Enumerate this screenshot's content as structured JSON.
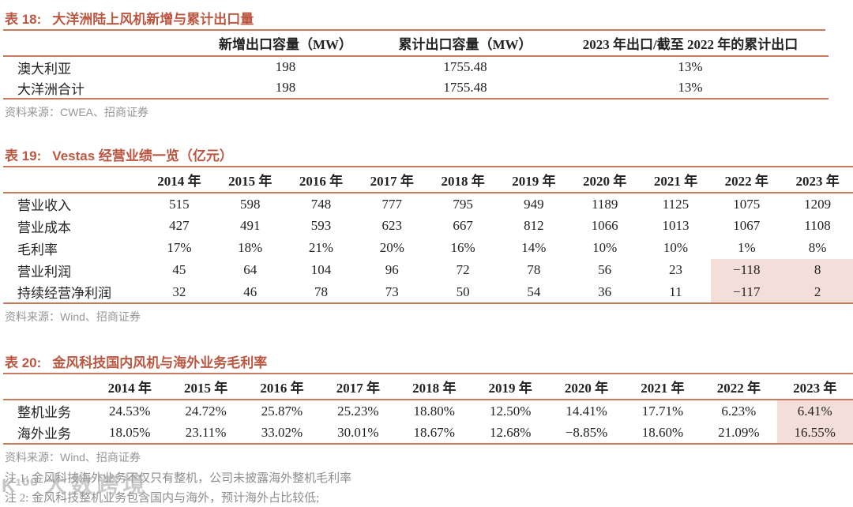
{
  "colors": {
    "title": "#bb5741",
    "rule": "#c67a5d",
    "highlight": "#f3ded9",
    "source_gray": "#969696"
  },
  "table18": {
    "title_num": "表 18:",
    "title": "大洋洲陆上风机新增与累计出口量",
    "columns": [
      "",
      "新增出口容量（MW）",
      "累计出口容量（MW）",
      "2023 年出口/截至 2022 年的累计出口"
    ],
    "rows": [
      {
        "label": "澳大利亚",
        "values": [
          "198",
          "1755.48",
          "13%"
        ]
      },
      {
        "label": "大洋洲合计",
        "values": [
          "198",
          "1755.48",
          "13%"
        ]
      }
    ],
    "source": "资料来源：CWEA、招商证券"
  },
  "table19": {
    "title_num": "表 19:",
    "title": "Vestas 经营业绩一览（亿元）",
    "years": [
      "2014 年",
      "2015 年",
      "2016 年",
      "2017 年",
      "2018 年",
      "2019 年",
      "2020 年",
      "2021 年",
      "2022 年",
      "2023 年"
    ],
    "rows": [
      {
        "label": "营业收入",
        "values": [
          "515",
          "598",
          "748",
          "777",
          "795",
          "949",
          "1189",
          "1125",
          "1075",
          "1209"
        ]
      },
      {
        "label": "营业成本",
        "values": [
          "427",
          "491",
          "593",
          "623",
          "667",
          "812",
          "1066",
          "1013",
          "1067",
          "1108"
        ]
      },
      {
        "label": "毛利率",
        "values": [
          "17%",
          "18%",
          "21%",
          "20%",
          "16%",
          "14%",
          "10%",
          "10%",
          "1%",
          "8%"
        ]
      },
      {
        "label": "营业利润",
        "values": [
          "45",
          "64",
          "104",
          "96",
          "72",
          "78",
          "56",
          "23",
          "−118",
          "8"
        ],
        "highlight_from": 8
      },
      {
        "label": "持续经营净利润",
        "values": [
          "32",
          "46",
          "78",
          "73",
          "50",
          "54",
          "36",
          "11",
          "−117",
          "2"
        ],
        "highlight_from": 8
      }
    ],
    "source": "资料来源：Wind、招商证券"
  },
  "table20": {
    "title_num": "表 20:",
    "title": "金风科技国内风机与海外业务毛利率",
    "years": [
      "2014 年",
      "2015 年",
      "2016 年",
      "2017 年",
      "2018 年",
      "2019 年",
      "2020 年",
      "2021 年",
      "2022 年",
      "2023 年"
    ],
    "rows": [
      {
        "label": "整机业务",
        "values": [
          "24.53%",
          "24.72%",
          "25.87%",
          "25.23%",
          "18.80%",
          "12.50%",
          "14.41%",
          "17.71%",
          "6.23%",
          "6.41%"
        ],
        "highlight_from": 9
      },
      {
        "label": "海外业务",
        "values": [
          "18.05%",
          "23.11%",
          "33.02%",
          "30.01%",
          "18.67%",
          "12.68%",
          "−8.85%",
          "18.60%",
          "21.09%",
          "16.55%"
        ],
        "highlight_from": 9
      }
    ],
    "source": "资料来源：Wind、招商证券",
    "notes": [
      "注 1: 金风科技海外业务不仅只有整机，公司未披露海外整机毛利率",
      "注 2: 金风科技整机业务包含国内与海外，预计海外占比较低;"
    ]
  },
  "watermark": {
    "logo": "K¹⁰⁰",
    "text": "大数跨境"
  }
}
